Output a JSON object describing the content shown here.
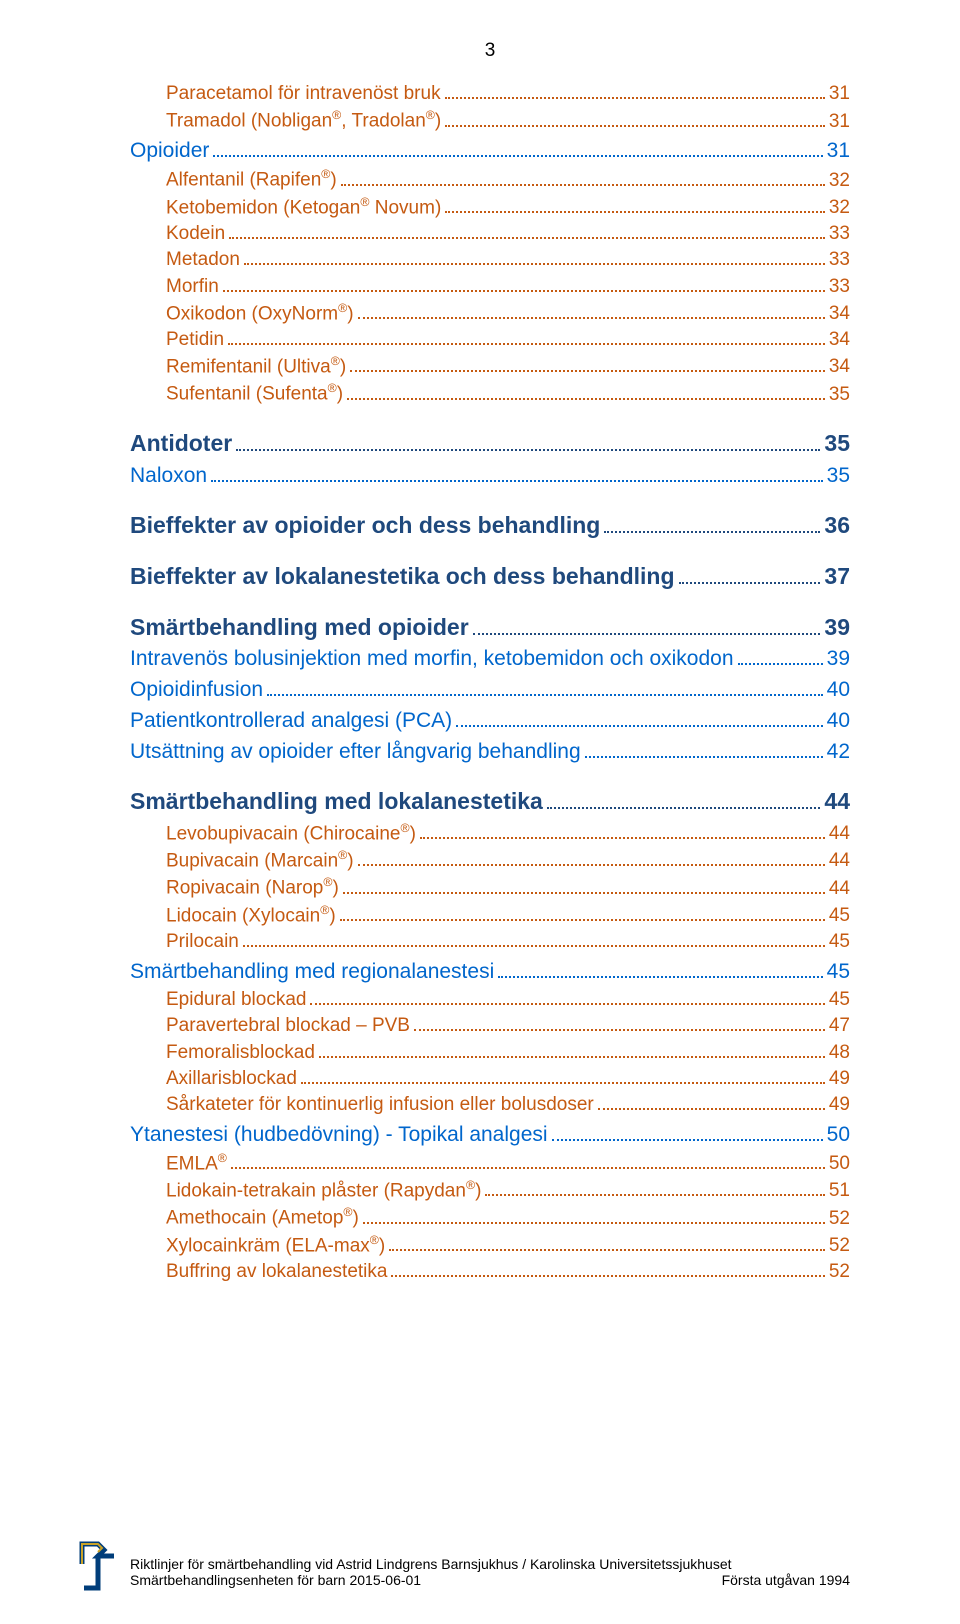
{
  "page_number": "3",
  "colors": {
    "level1": "#1f497d",
    "level2": "#0066cc",
    "level3": "#c55a11",
    "text": "#000000",
    "background": "#ffffff"
  },
  "toc": [
    {
      "level": 3,
      "label": "Paracetamol för intravenöst bruk",
      "page": "31"
    },
    {
      "level": 3,
      "label": "Tramadol (Nobligan®, Tradolan®)",
      "page": "31"
    },
    {
      "level": 2,
      "label": "Opioider",
      "page": "31"
    },
    {
      "level": 3,
      "label": "Alfentanil (Rapifen®)",
      "page": "32"
    },
    {
      "level": 3,
      "label": "Ketobemidon (Ketogan® Novum)",
      "page": "32"
    },
    {
      "level": 3,
      "label": "Kodein",
      "page": "33"
    },
    {
      "level": 3,
      "label": "Metadon",
      "page": "33"
    },
    {
      "level": 3,
      "label": "Morfin",
      "page": "33"
    },
    {
      "level": 3,
      "label": "Oxikodon (OxyNorm®)",
      "page": "34"
    },
    {
      "level": 3,
      "label": "Petidin",
      "page": "34"
    },
    {
      "level": 3,
      "label": "Remifentanil (Ultiva®)",
      "page": "34"
    },
    {
      "level": 3,
      "label": "Sufentanil (Sufenta®)",
      "page": "35"
    },
    {
      "level": 1,
      "label": "Antidoter",
      "page": "35"
    },
    {
      "level": 2,
      "label": "Naloxon",
      "page": "35"
    },
    {
      "level": 1,
      "label": "Bieffekter av opioider och dess behandling",
      "page": "36"
    },
    {
      "level": 1,
      "label": "Bieffekter av lokalanestetika och dess behandling",
      "page": "37"
    },
    {
      "level": 1,
      "label": "Smärtbehandling med opioider",
      "page": "39"
    },
    {
      "level": 2,
      "label": "Intravenös bolusinjektion med morfin, ketobemidon och oxikodon",
      "page": "39"
    },
    {
      "level": 2,
      "label": "Opioidinfusion",
      "page": "40"
    },
    {
      "level": 2,
      "label": "Patientkontrollerad analgesi (PCA)",
      "page": "40"
    },
    {
      "level": 2,
      "label": "Utsättning av opioider efter långvarig behandling",
      "page": "42"
    },
    {
      "level": 1,
      "label": "Smärtbehandling med lokalanestetika",
      "page": "44"
    },
    {
      "level": 3,
      "label": "Levobupivacain (Chirocaine®)",
      "page": "44"
    },
    {
      "level": 3,
      "label": "Bupivacain (Marcain®)",
      "page": "44"
    },
    {
      "level": 3,
      "label": "Ropivacain (Narop®)",
      "page": "44"
    },
    {
      "level": 3,
      "label": "Lidocain (Xylocain®)",
      "page": "45"
    },
    {
      "level": 3,
      "label": "Prilocain",
      "page": "45"
    },
    {
      "level": 2,
      "label": "Smärtbehandling med regionalanestesi",
      "page": "45"
    },
    {
      "level": 3,
      "label": "Epidural blockad",
      "page": "45"
    },
    {
      "level": 3,
      "label": "Paravertebral blockad – PVB",
      "page": "47"
    },
    {
      "level": 3,
      "label": "Femoralisblockad",
      "page": "48"
    },
    {
      "level": 3,
      "label": "Axillarisblockad",
      "page": "49"
    },
    {
      "level": 3,
      "label": "Sårkateter för kontinuerlig infusion eller bolusdoser",
      "page": "49"
    },
    {
      "level": 2,
      "label": "Ytanestesi (hudbedövning) - Topikal analgesi",
      "page": "50"
    },
    {
      "level": 3,
      "label": "EMLA®",
      "page": "50"
    },
    {
      "level": 3,
      "label": "Lidokain-tetrakain plåster (Rapydan®)",
      "page": "51"
    },
    {
      "level": 3,
      "label": "Amethocain (Ametop®)",
      "page": "52"
    },
    {
      "level": 3,
      "label": "Xylocainkräm (ELA-max®)",
      "page": "52"
    },
    {
      "level": 3,
      "label": "Buffring av lokalanestetika",
      "page": "52"
    }
  ],
  "footer": {
    "line1": "Riktlinjer för smärtbehandling vid Astrid Lindgrens Barnsjukhus / Karolinska Universitetssjukhuset",
    "line2_left": "Smärtbehandlingsenheten för barn 2015-06-01",
    "line2_right": "Första utgåvan 1994"
  }
}
